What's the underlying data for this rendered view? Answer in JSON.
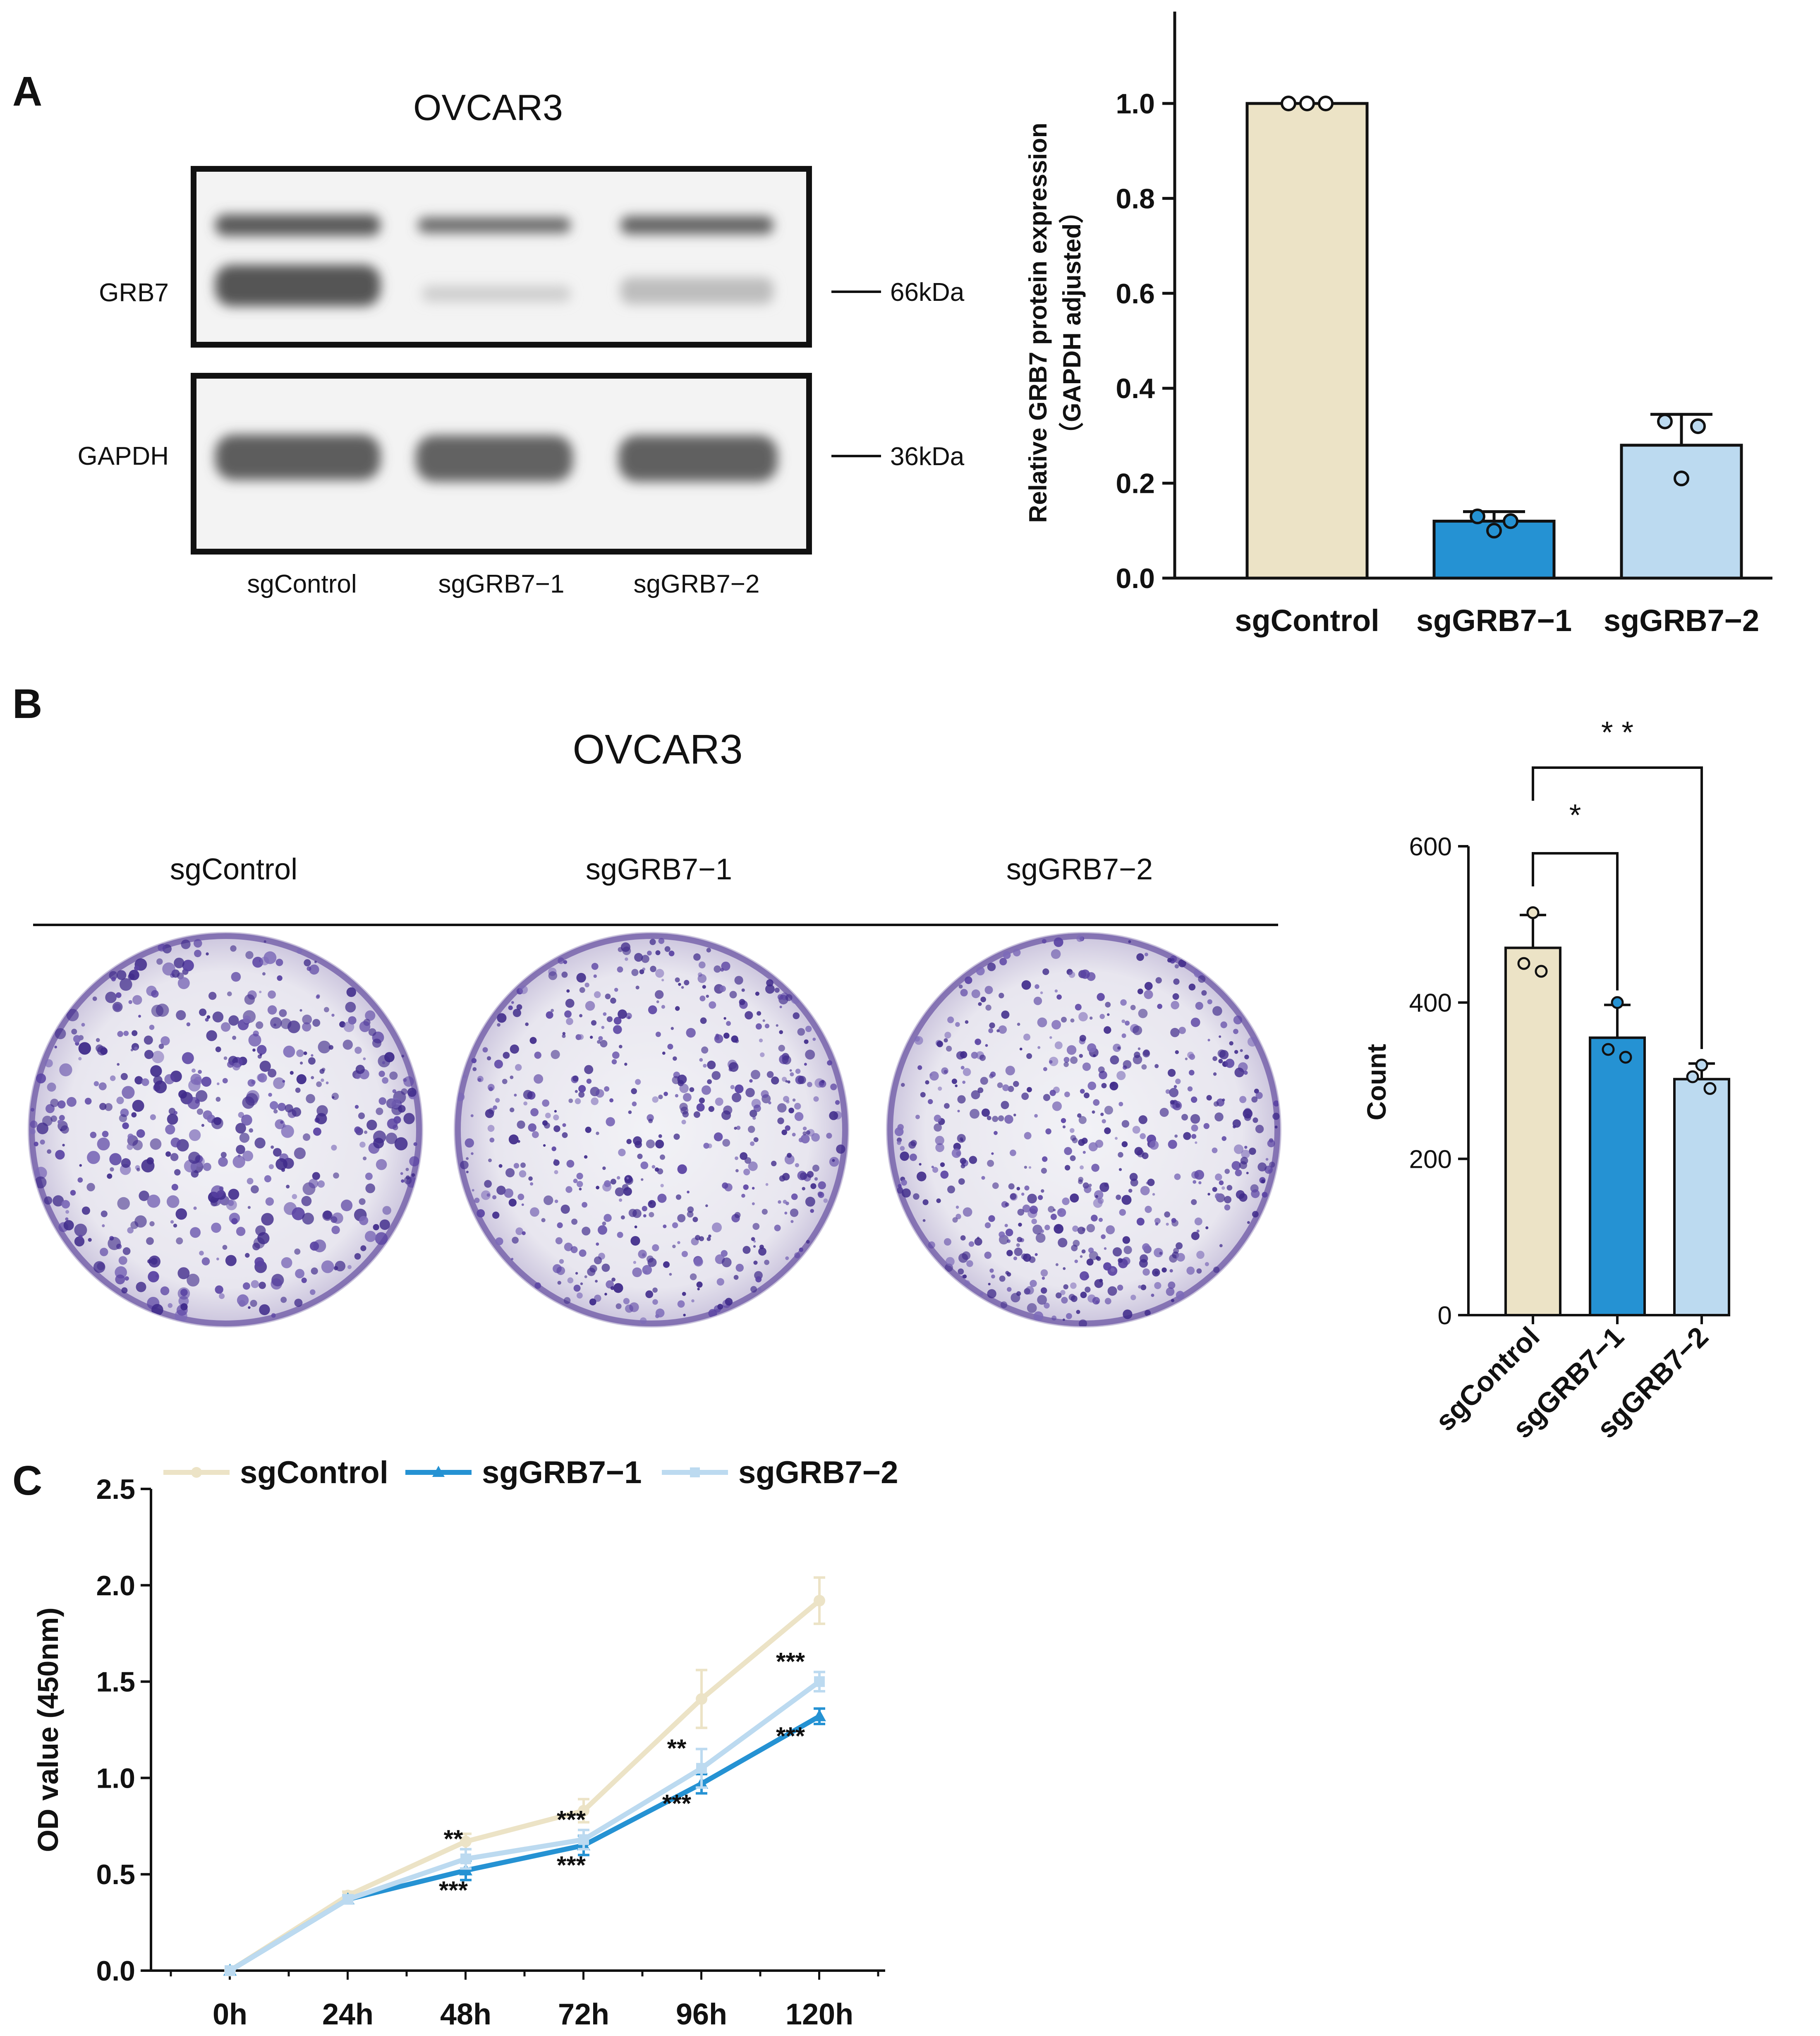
{
  "panel_a": {
    "label": "A",
    "blot": {
      "title": "OVCAR3",
      "rows": [
        {
          "name": "GRB7",
          "size": "66kDa"
        },
        {
          "name": "GAPDH",
          "size": "36kDa"
        }
      ],
      "lanes": [
        "sgControl",
        "sgGRB7−1",
        "sgGRB7−2"
      ]
    }
  },
  "panel_b": {
    "label": "B",
    "title": "OVCAR3",
    "plates": [
      "sgControl",
      "sgGRB7−1",
      "sgGRB7−2"
    ]
  },
  "panel_c": {
    "label": "C"
  },
  "colors": {
    "sgControl": "#ece3c6",
    "sgGRB7-1": "#2592d3",
    "sgGRB7-2": "#bcdaf0",
    "crystal_violet": "#4a2f8f"
  },
  "chart_data": [
    {
      "id": "grb7-expression",
      "type": "bar",
      "categories": [
        "sgControl",
        "sgGRB7−1",
        "sgGRB7−2"
      ],
      "values": [
        1.0,
        0.12,
        0.28
      ],
      "errors": [
        0.0,
        0.02,
        0.065
      ],
      "points": [
        [
          1.0,
          1.0,
          1.0
        ],
        [
          0.13,
          0.1,
          0.12
        ],
        [
          0.33,
          0.21,
          0.32
        ]
      ],
      "ylabel": "Relative GRB7 protein expression",
      "ylabel2": "（GAPDH adjusted）",
      "ylim": [
        0,
        1.1
      ],
      "yticks": [
        "0.0",
        "0.2",
        "0.4",
        "0.6",
        "0.8",
        "1.0"
      ]
    },
    {
      "id": "colony-count",
      "type": "bar",
      "categories": [
        "sgControl",
        "sgGRB7−1",
        "sgGRB7−2"
      ],
      "values": [
        470,
        355,
        302
      ],
      "errors": [
        42,
        42,
        20
      ],
      "points": [
        [
          515,
          450,
          440
        ],
        [
          400,
          340,
          330
        ],
        [
          320,
          305,
          290
        ]
      ],
      "ylabel": "Count",
      "ylim": [
        0,
        600
      ],
      "yticks": [
        "0",
        "200",
        "400",
        "600"
      ],
      "significance": [
        {
          "from": 0,
          "to": 1,
          "label": "*"
        },
        {
          "from": 0,
          "to": 2,
          "label": "* *"
        }
      ]
    },
    {
      "id": "cck8-growth",
      "type": "line",
      "x": [
        "0h",
        "24h",
        "48h",
        "72h",
        "96h",
        "120h"
      ],
      "ylabel": "OD value (450nm)",
      "ylim": [
        0,
        2.5
      ],
      "yticks": [
        "0.0",
        "0.5",
        "1.0",
        "1.5",
        "2.0",
        "2.5"
      ],
      "series": [
        {
          "name": "sgControl",
          "values": [
            0,
            0.39,
            0.67,
            0.83,
            1.41,
            1.92
          ],
          "errors": [
            0,
            0.02,
            0.04,
            0.06,
            0.15,
            0.12
          ]
        },
        {
          "name": "sgGRB7−1",
          "values": [
            0,
            0.37,
            0.52,
            0.65,
            0.97,
            1.32
          ],
          "errors": [
            0,
            0.02,
            0.05,
            0.05,
            0.05,
            0.04
          ]
        },
        {
          "name": "sgGRB7−2",
          "values": [
            0,
            0.37,
            0.58,
            0.68,
            1.05,
            1.5
          ],
          "errors": [
            0,
            0.02,
            0.05,
            0.05,
            0.1,
            0.05
          ]
        }
      ],
      "annotations": [
        {
          "x_index": 2,
          "y": 0.58,
          "label": "**",
          "series": "sgGRB7−2"
        },
        {
          "x_index": 2,
          "y": 0.52,
          "label": "***",
          "series": "sgGRB7−1"
        },
        {
          "x_index": 3,
          "y": 0.68,
          "label": "***",
          "series": "sgGRB7−2"
        },
        {
          "x_index": 3,
          "y": 0.65,
          "label": "***",
          "series": "sgGRB7−1"
        },
        {
          "x_index": 4,
          "y": 1.05,
          "label": "**",
          "series": "sgGRB7−2"
        },
        {
          "x_index": 4,
          "y": 0.97,
          "label": "***",
          "series": "sgGRB7−1"
        },
        {
          "x_index": 5,
          "y": 1.5,
          "label": "***",
          "series": "sgGRB7−2"
        },
        {
          "x_index": 5,
          "y": 1.32,
          "label": "***",
          "series": "sgGRB7−1"
        }
      ]
    }
  ]
}
